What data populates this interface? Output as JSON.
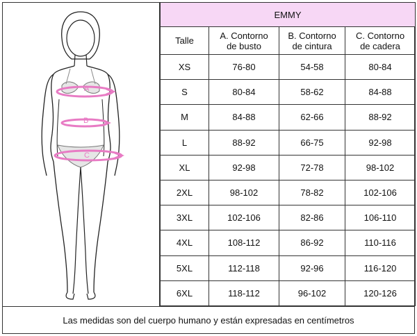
{
  "brand": "EMMY",
  "headers": {
    "size": "Talle",
    "a_line1": "A. Contorno",
    "a_line2": "de busto",
    "b_line1": "B. Contorno",
    "b_line2": "de cintura",
    "c_line1": "C. Contorno",
    "c_line2": "de cadera"
  },
  "rows": [
    {
      "size": "XS",
      "a": "76-80",
      "b": "54-58",
      "c": "80-84"
    },
    {
      "size": "S",
      "a": "80-84",
      "b": "58-62",
      "c": "84-88"
    },
    {
      "size": "M",
      "a": "84-88",
      "b": "62-66",
      "c": "88-92"
    },
    {
      "size": "L",
      "a": "88-92",
      "b": "66-75",
      "c": "92-98"
    },
    {
      "size": "XL",
      "a": "92-98",
      "b": "72-78",
      "c": "98-102"
    },
    {
      "size": "2XL",
      "a": "98-102",
      "b": "78-82",
      "c": "102-106"
    },
    {
      "size": "3XL",
      "a": "102-106",
      "b": "82-86",
      "c": "106-110"
    },
    {
      "size": "4XL",
      "a": "108-112",
      "b": "86-92",
      "c": "110-116"
    },
    {
      "size": "5XL",
      "a": "112-118",
      "b": "92-96",
      "c": "116-120"
    },
    {
      "size": "6XL",
      "a": "118-112",
      "b": "96-102",
      "c": "120-126"
    }
  ],
  "figure": {
    "marker_a": "A",
    "marker_b": "B",
    "marker_c": "C",
    "marker_color": "#e87bc4"
  },
  "footnote": "Las medidas son del cuerpo humano y están expresadas en centímetros"
}
